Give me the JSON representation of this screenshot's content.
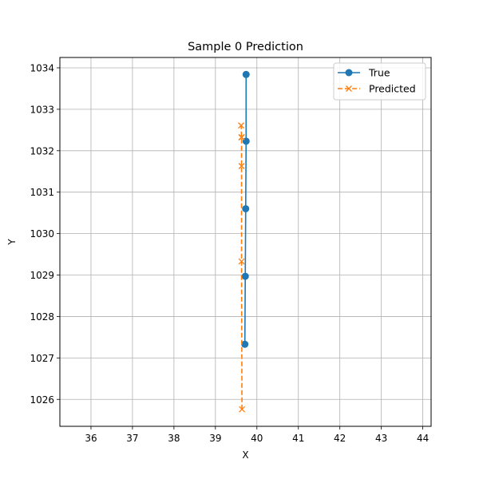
{
  "chart_data": {
    "type": "line",
    "title": "Sample 0 Prediction",
    "xlabel": "X",
    "ylabel": "Y",
    "xlim": [
      35.25,
      44.2
    ],
    "ylim": [
      1025.35,
      1034.25
    ],
    "xticks": [
      36,
      37,
      38,
      39,
      40,
      41,
      42,
      43,
      44
    ],
    "yticks": [
      1026,
      1027,
      1028,
      1029,
      1030,
      1031,
      1032,
      1033,
      1034
    ],
    "grid": true,
    "legend_position": "top-right",
    "series": [
      {
        "name": "True",
        "color": "#1f77b4",
        "linestyle": "solid",
        "marker": "circle",
        "x": [
          39.71,
          39.72,
          39.73,
          39.74,
          39.74
        ],
        "y": [
          1027.33,
          1028.97,
          1030.6,
          1032.23,
          1033.84
        ]
      },
      {
        "name": "Predicted",
        "color": "#ff7f0e",
        "linestyle": "dashed",
        "marker": "x",
        "x": [
          39.64,
          39.63,
          39.63,
          39.63,
          39.63,
          39.62
        ],
        "y": [
          1025.76,
          1029.33,
          1031.63,
          1032.32,
          1032.33,
          1032.61
        ]
      }
    ]
  }
}
